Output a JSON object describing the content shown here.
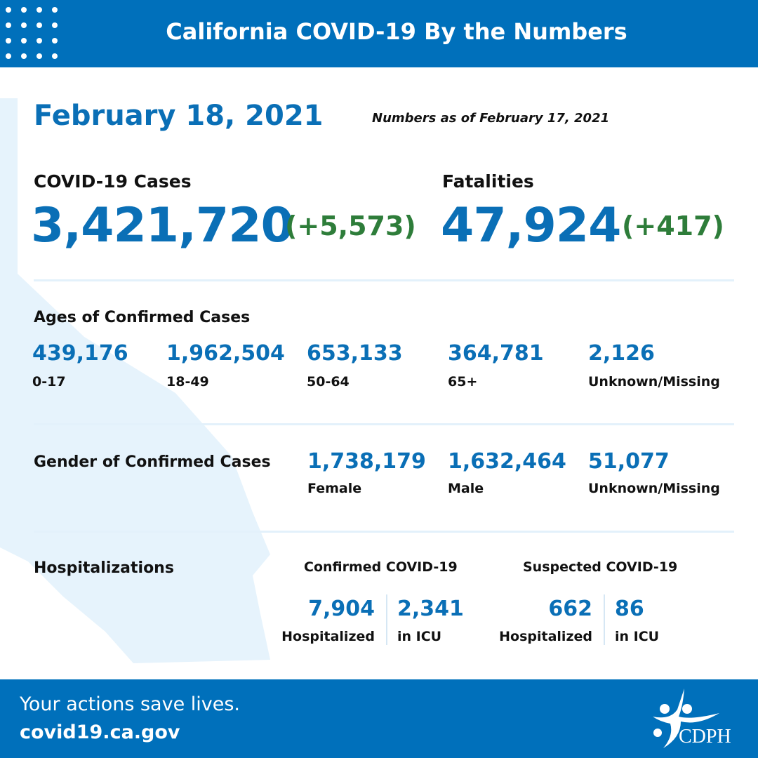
{
  "header": {
    "title": "California COVID-19 By the Numbers"
  },
  "date": "February 18, 2021",
  "as_of": "Numbers as of February 17, 2021",
  "cases": {
    "label": "COVID-19 Cases",
    "value": "3,421,720",
    "delta": "(+5,573)"
  },
  "fatalities": {
    "label": "Fatalities",
    "value": "47,924",
    "delta": "(+417)"
  },
  "ages": {
    "title": "Ages of Confirmed Cases",
    "items": [
      {
        "value": "439,176",
        "label": "0-17"
      },
      {
        "value": "1,962,504",
        "label": "18-49"
      },
      {
        "value": "653,133",
        "label": "50-64"
      },
      {
        "value": "364,781",
        "label": "65+"
      },
      {
        "value": "2,126",
        "label": "Unknown/Missing"
      }
    ]
  },
  "gender": {
    "title": "Gender of Confirmed Cases",
    "items": [
      {
        "value": "1,738,179",
        "label": "Female"
      },
      {
        "value": "1,632,464",
        "label": "Male"
      },
      {
        "value": "51,077",
        "label": "Unknown/Missing"
      }
    ]
  },
  "hosp": {
    "title": "Hospitalizations",
    "confirmed": {
      "title": "Confirmed COVID-19",
      "hospitalized": "7,904",
      "hospitalized_label": "Hospitalized",
      "icu": "2,341",
      "icu_label": "in ICU"
    },
    "suspected": {
      "title": "Suspected COVID-19",
      "hospitalized": "662",
      "hospitalized_label": "Hospitalized",
      "icu": "86",
      "icu_label": "in ICU"
    }
  },
  "footer": {
    "tagline": "Your actions save lives.",
    "url": "covid19.ca.gov",
    "logo_text": "CDPH"
  },
  "colors": {
    "brand": "#0070bb",
    "number": "#0a6fb6",
    "delta": "#2e7d3a",
    "map": "#e6f3fc"
  }
}
